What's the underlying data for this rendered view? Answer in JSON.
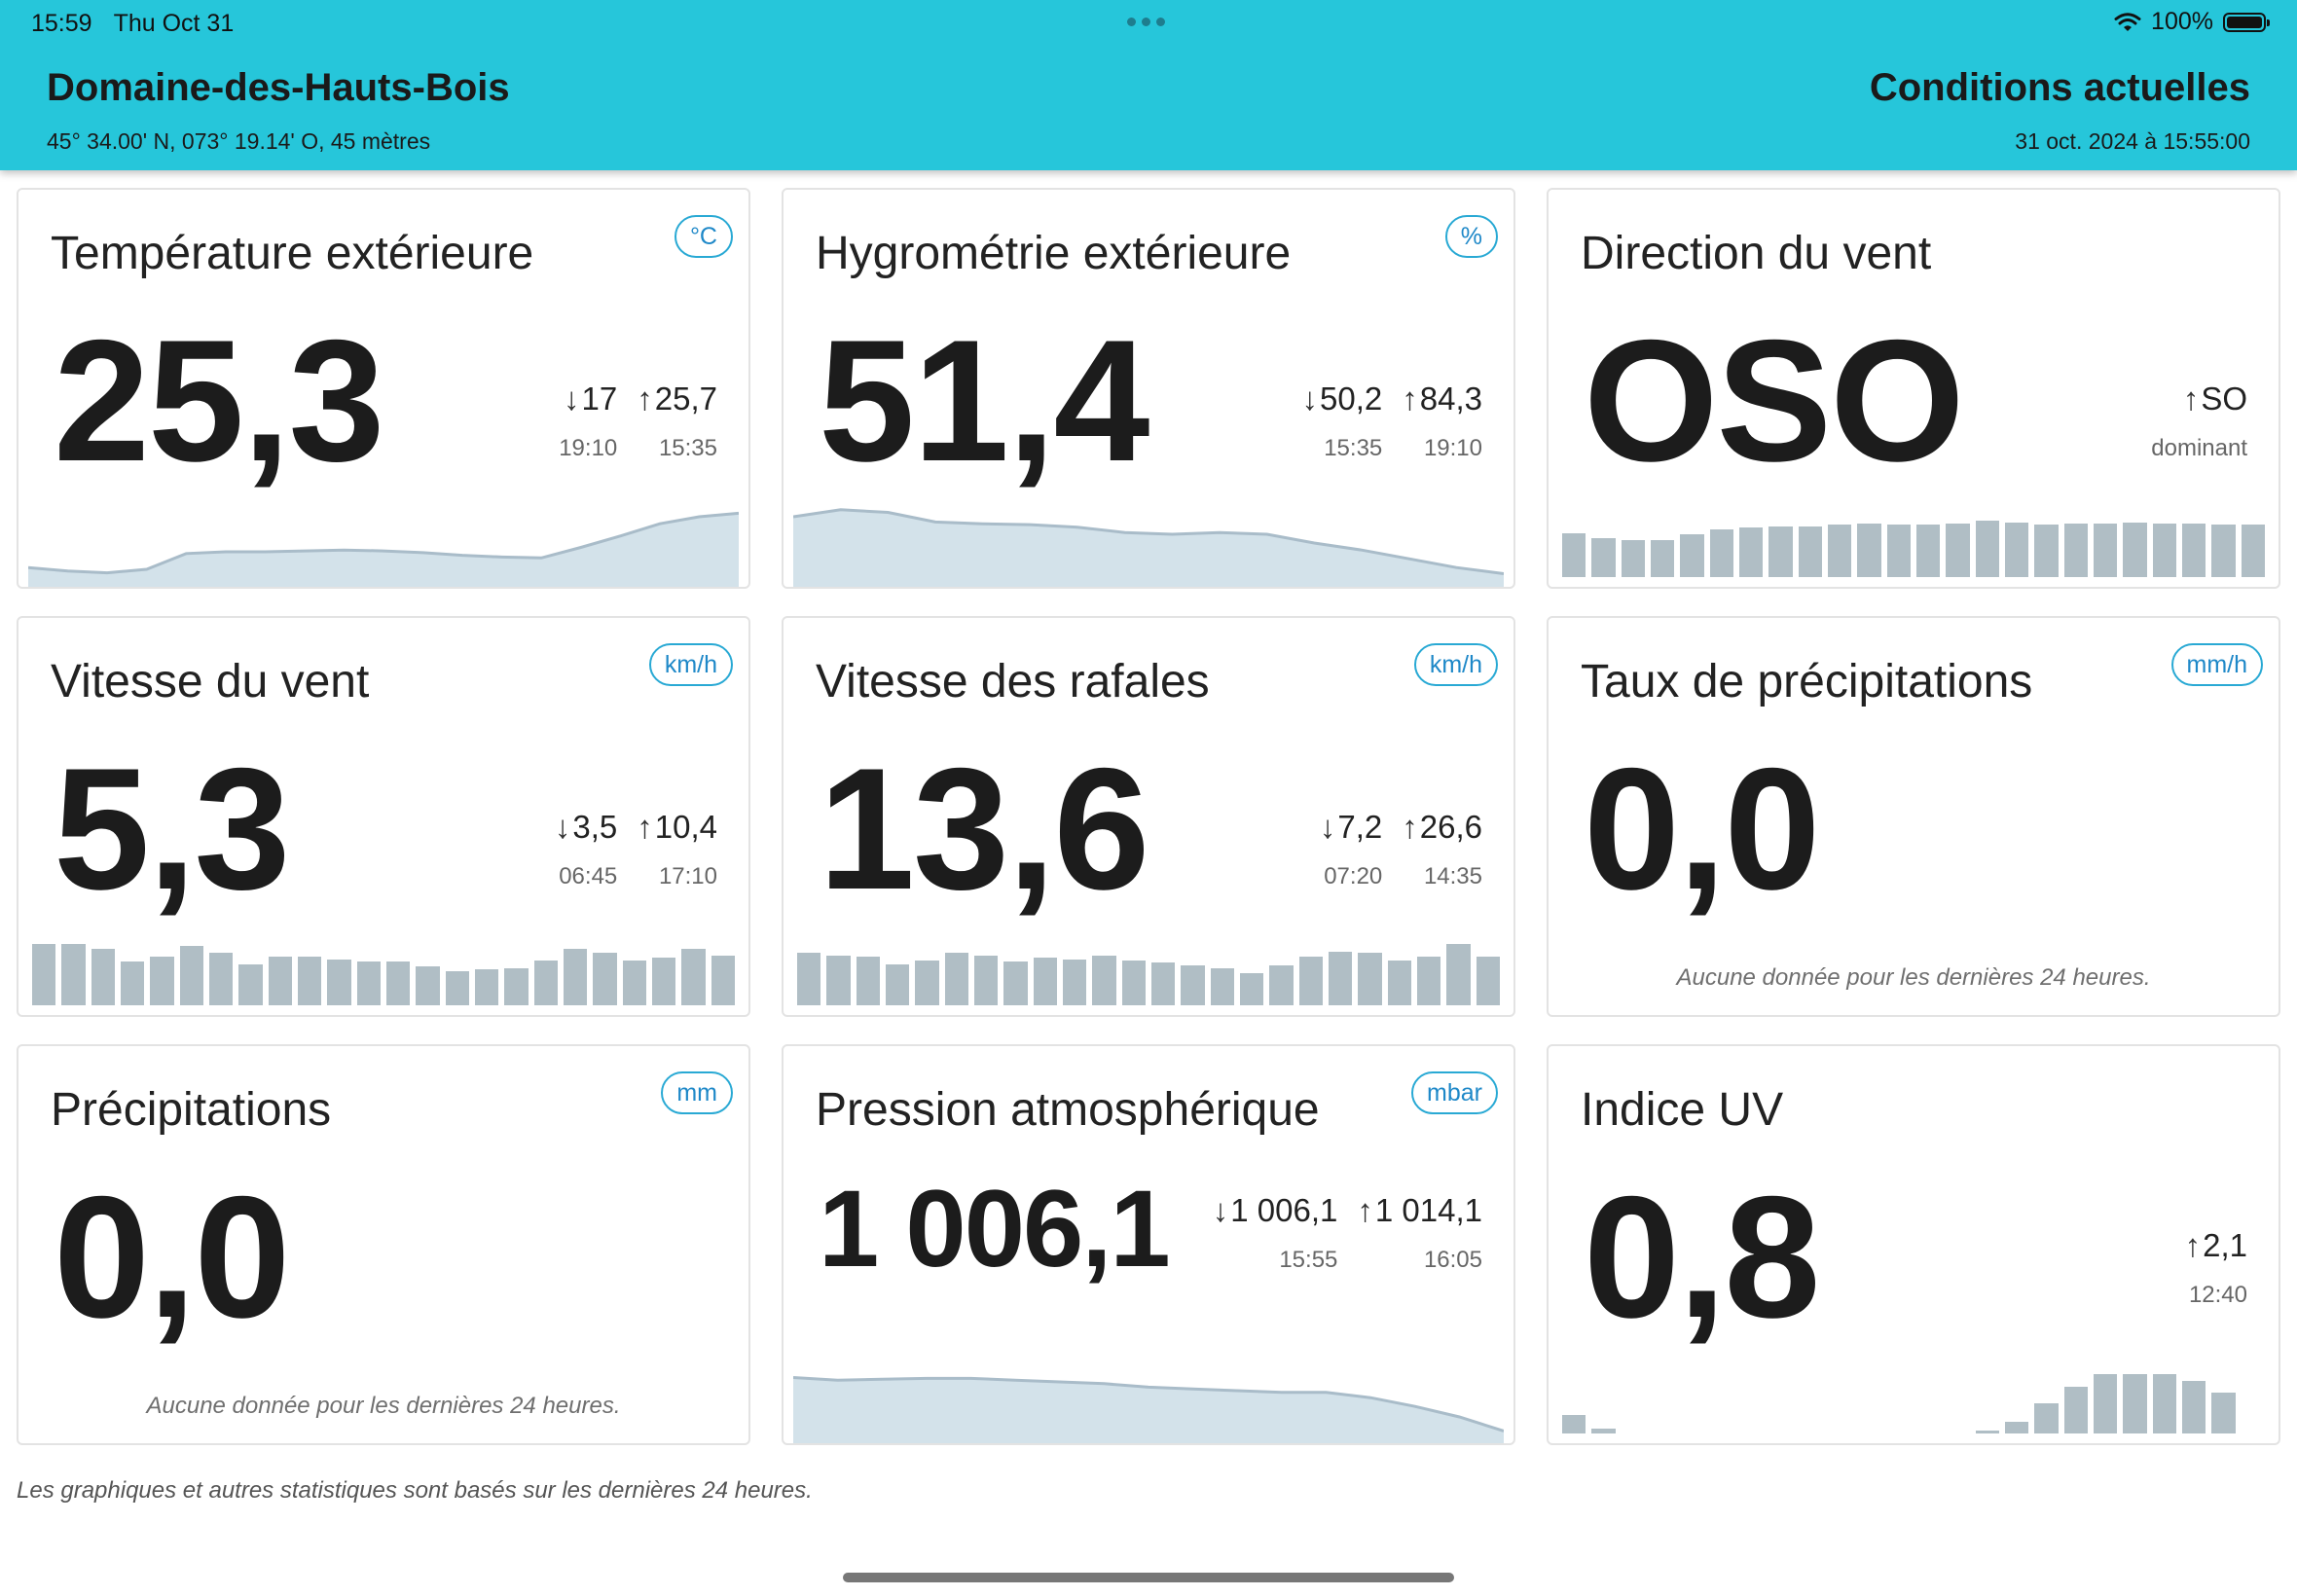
{
  "status_bar": {
    "time": "15:59",
    "date": "Thu Oct 31",
    "battery": "100%",
    "icons": [
      "wifi-icon",
      "battery-icon"
    ]
  },
  "header": {
    "station": "Domaine-des-Hauts-Bois",
    "coords": "45° 34.00' N, 073° 19.14' O, 45 mètres",
    "title": "Conditions actuelles",
    "timestamp": "31 oct. 2024 à 15:55:00"
  },
  "colors": {
    "header_bg": "#26c6da",
    "badge_border": "#29a9d4",
    "spark_fill": "#d3e2ea",
    "spark_line": "#a9bcc9",
    "bar": "#b0bec5"
  },
  "cards": {
    "temp": {
      "title": "Température extérieure",
      "unit": "°C",
      "value": "25,3",
      "min": {
        "arrow": "↓",
        "value": "17",
        "time": "19:10"
      },
      "max": {
        "arrow": "↑",
        "value": "25,7",
        "time": "15:35"
      },
      "series": [
        0.22,
        0.18,
        0.16,
        0.2,
        0.38,
        0.4,
        0.4,
        0.41,
        0.42,
        0.41,
        0.39,
        0.36,
        0.34,
        0.33,
        0.45,
        0.58,
        0.72,
        0.8,
        0.84
      ]
    },
    "hum": {
      "title": "Hygrométrie extérieure",
      "unit": "%",
      "value": "51,4",
      "min": {
        "arrow": "↓",
        "value": "50,2",
        "time": "15:35"
      },
      "max": {
        "arrow": "↑",
        "value": "84,3",
        "time": "19:10"
      },
      "series": [
        0.8,
        0.88,
        0.85,
        0.74,
        0.72,
        0.71,
        0.68,
        0.62,
        0.6,
        0.62,
        0.6,
        0.5,
        0.42,
        0.32,
        0.22,
        0.15
      ]
    },
    "wdir": {
      "title": "Direction du vent",
      "value": "OSO",
      "dominant": {
        "arrow": "↑",
        "value": "SO",
        "label": "dominant"
      },
      "bars": [
        0.7,
        0.62,
        0.6,
        0.6,
        0.68,
        0.76,
        0.8,
        0.82,
        0.82,
        0.84,
        0.86,
        0.84,
        0.84,
        0.86,
        0.9,
        0.88,
        0.84,
        0.86,
        0.86,
        0.88,
        0.86,
        0.86,
        0.84,
        0.84
      ]
    },
    "wspeed": {
      "title": "Vitesse du vent",
      "unit": "km/h",
      "value": "5,3",
      "min": {
        "arrow": "↓",
        "value": "3,5",
        "time": "06:45"
      },
      "max": {
        "arrow": "↑",
        "value": "10,4",
        "time": "17:10"
      },
      "bars": [
        0.98,
        0.98,
        0.9,
        0.7,
        0.78,
        0.95,
        0.84,
        0.66,
        0.78,
        0.78,
        0.74,
        0.7,
        0.7,
        0.62,
        0.54,
        0.58,
        0.6,
        0.72,
        0.9,
        0.84,
        0.72,
        0.76,
        0.9,
        0.8
      ]
    },
    "gust": {
      "title": "Vitesse des rafales",
      "unit": "km/h",
      "value": "13,6",
      "min": {
        "arrow": "↓",
        "value": "7,2",
        "time": "07:20"
      },
      "max": {
        "arrow": "↑",
        "value": "26,6",
        "time": "14:35"
      },
      "bars": [
        0.84,
        0.8,
        0.78,
        0.66,
        0.72,
        0.84,
        0.8,
        0.7,
        0.76,
        0.74,
        0.8,
        0.72,
        0.68,
        0.64,
        0.6,
        0.52,
        0.64,
        0.78,
        0.86,
        0.84,
        0.72,
        0.78,
        0.98,
        0.78
      ]
    },
    "rain_rate": {
      "title": "Taux de précipitations",
      "unit": "mm/h",
      "value": "0,0",
      "no_data": "Aucune donnée pour les dernières 24 heures."
    },
    "rain": {
      "title": "Précipitations",
      "unit": "mm",
      "value": "0,0",
      "no_data": "Aucune donnée pour les dernières 24 heures."
    },
    "pressure": {
      "title": "Pression atmosphérique",
      "unit": "mbar",
      "value": "1 006,1",
      "min": {
        "arrow": "↓",
        "value": "1 006,1",
        "time": "15:55"
      },
      "max": {
        "arrow": "↑",
        "value": "1 014,1",
        "time": "16:05"
      },
      "series": [
        0.75,
        0.72,
        0.73,
        0.74,
        0.74,
        0.72,
        0.7,
        0.68,
        0.64,
        0.62,
        0.6,
        0.58,
        0.58,
        0.52,
        0.42,
        0.3,
        0.14
      ]
    },
    "uv": {
      "title": "Indice UV",
      "value": "0,8",
      "max": {
        "arrow": "↑",
        "value": "2,1",
        "time": "12:40"
      },
      "bars": [
        0.3,
        0.08,
        0,
        0,
        0,
        0,
        0,
        0,
        0,
        0,
        0,
        0,
        0,
        0,
        0.04,
        0.18,
        0.48,
        0.75,
        0.95,
        0.95,
        0.95,
        0.85,
        0.65,
        0
      ]
    }
  },
  "footer_note": "Les graphiques et autres statistiques sont basés sur les dernières 24 heures."
}
